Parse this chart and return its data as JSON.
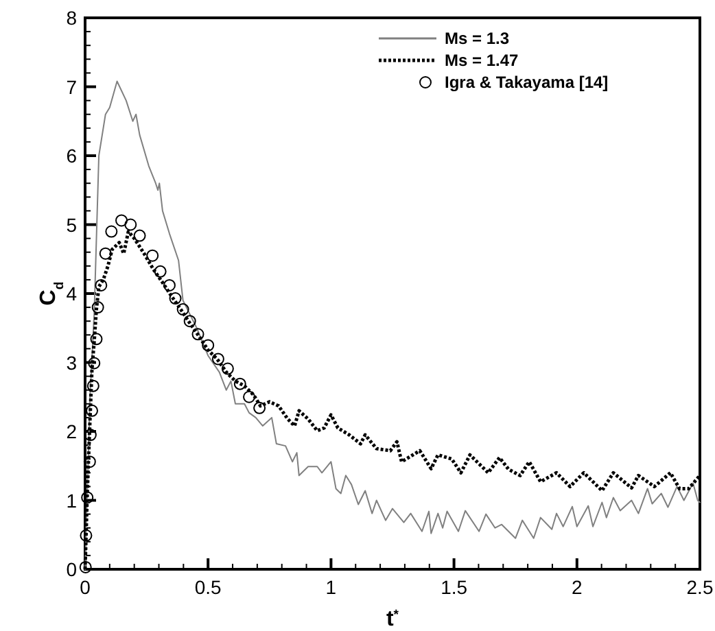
{
  "chart_data": {
    "type": "line",
    "xlabel": "t$^{*}$",
    "ylabel": "C$_{d}$",
    "xlim": [
      0,
      2.5
    ],
    "ylim": [
      0,
      8
    ],
    "xticks": [
      0,
      {
        "value": 0.1,
        "label": null
      },
      {
        "value": 0.2,
        "label": null
      },
      {
        "value": 0.3,
        "label": null
      },
      {
        "value": 0.4,
        "label": null
      },
      0.5,
      {
        "value": 0.6,
        "label": null
      },
      {
        "value": 0.7,
        "label": null
      },
      {
        "value": 0.8,
        "label": null
      },
      {
        "value": 0.9,
        "label": null
      },
      1,
      {
        "value": 1.1,
        "label": null
      },
      {
        "value": 1.2,
        "label": null
      },
      {
        "value": 1.3,
        "label": null
      },
      {
        "value": 1.4,
        "label": null
      },
      1.5,
      {
        "value": 1.6,
        "label": null
      },
      {
        "value": 1.7,
        "label": null
      },
      {
        "value": 1.8,
        "label": null
      },
      {
        "value": 1.9,
        "label": null
      },
      2,
      {
        "value": 2.1,
        "label": null
      },
      {
        "value": 2.2,
        "label": null
      },
      {
        "value": 2.3,
        "label": null
      },
      {
        "value": 2.4,
        "label": null
      },
      2.5
    ],
    "yticks": [
      0,
      {
        "value": 0.2,
        "label": null
      },
      {
        "value": 0.4,
        "label": null
      },
      {
        "value": 0.6,
        "label": null
      },
      {
        "value": 0.8,
        "label": null
      },
      1,
      {
        "value": 1.2,
        "label": null
      },
      {
        "value": 1.4,
        "label": null
      },
      {
        "value": 1.6,
        "label": null
      },
      {
        "value": 1.8,
        "label": null
      },
      2,
      {
        "value": 2.2,
        "label": null
      },
      {
        "value": 2.4,
        "label": null
      },
      {
        "value": 2.6,
        "label": null
      },
      {
        "value": 2.8,
        "label": null
      },
      3,
      {
        "value": 3.2,
        "label": null
      },
      {
        "value": 3.4,
        "label": null
      },
      {
        "value": 3.6,
        "label": null
      },
      {
        "value": 3.8,
        "label": null
      },
      4,
      {
        "value": 4.2,
        "label": null
      },
      {
        "value": 4.4,
        "label": null
      },
      {
        "value": 4.6,
        "label": null
      },
      {
        "value": 4.8,
        "label": null
      },
      5,
      {
        "value": 5.2,
        "label": null
      },
      {
        "value": 5.4,
        "label": null
      },
      {
        "value": 5.6,
        "label": null
      },
      {
        "value": 5.8,
        "label": null
      },
      6,
      {
        "value": 6.2,
        "label": null
      },
      {
        "value": 6.4,
        "label": null
      },
      {
        "value": 6.6,
        "label": null
      },
      {
        "value": 6.8,
        "label": null
      },
      7,
      {
        "value": 7.2,
        "label": null
      },
      {
        "value": 7.4,
        "label": null
      },
      {
        "value": 7.6,
        "label": null
      },
      {
        "value": 7.8,
        "label": null
      },
      8
    ],
    "grid": false,
    "legend": "top right",
    "series": [
      {
        "name": "Ms = 1.3",
        "color": "#808080",
        "line_style": "solid",
        "marker": "none",
        "x": [
          0,
          0.02,
          0.037,
          0.056,
          0.083,
          0.1,
          0.13,
          0.167,
          0.194,
          0.207,
          0.222,
          0.259,
          0.287,
          0.296,
          0.302,
          0.315,
          0.343,
          0.38,
          0.398,
          0.426,
          0.454,
          0.5,
          0.519,
          0.546,
          0.574,
          0.593,
          0.611,
          0.648,
          0.667,
          0.694,
          0.722,
          0.759,
          0.778,
          0.815,
          0.843,
          0.861,
          0.87,
          0.907,
          0.944,
          0.963,
          1.0,
          1.02,
          1.04,
          1.06,
          1.083,
          1.111,
          1.139,
          1.167,
          1.185,
          1.222,
          1.25,
          1.296,
          1.324,
          1.37,
          1.398,
          1.407,
          1.435,
          1.454,
          1.472,
          1.518,
          1.546,
          1.602,
          1.63,
          1.667,
          1.694,
          1.75,
          1.778,
          1.824,
          1.852,
          1.898,
          1.917,
          1.944,
          1.981,
          2.0,
          2.046,
          2.065,
          2.102,
          2.12,
          2.148,
          2.176,
          2.222,
          2.25,
          2.287,
          2.306,
          2.343,
          2.37,
          2.407,
          2.435,
          2.472,
          2.491,
          2.5
        ],
        "values": [
          0,
          2.5,
          3.7,
          6.0,
          6.6,
          6.7,
          7.08,
          6.8,
          6.5,
          6.6,
          6.3,
          5.85,
          5.6,
          5.5,
          5.6,
          5.2,
          4.87,
          4.48,
          3.9,
          3.7,
          3.5,
          3.1,
          3.0,
          2.86,
          2.6,
          2.73,
          2.4,
          2.4,
          2.27,
          2.2,
          2.08,
          2.2,
          1.82,
          1.79,
          1.56,
          1.69,
          1.36,
          1.49,
          1.49,
          1.4,
          1.56,
          1.17,
          1.1,
          1.36,
          1.23,
          0.94,
          1.14,
          0.81,
          1.0,
          0.71,
          0.88,
          0.68,
          0.81,
          0.55,
          0.84,
          0.52,
          0.81,
          0.6,
          0.84,
          0.55,
          0.85,
          0.55,
          0.8,
          0.6,
          0.65,
          0.45,
          0.71,
          0.45,
          0.75,
          0.58,
          0.81,
          0.62,
          0.91,
          0.62,
          0.92,
          0.62,
          0.97,
          0.75,
          1.04,
          0.85,
          1.0,
          0.81,
          1.17,
          0.95,
          1.1,
          0.9,
          1.2,
          1.0,
          1.25,
          1.0,
          0.97
        ]
      },
      {
        "name": "Ms = 1.47",
        "color": "#000000",
        "line_style": "dotted",
        "marker": "none",
        "x": [
          0,
          0.009,
          0.019,
          0.028,
          0.037,
          0.046,
          0.056,
          0.074,
          0.093,
          0.11,
          0.139,
          0.157,
          0.176,
          0.2,
          0.24,
          0.278,
          0.315,
          0.352,
          0.389,
          0.426,
          0.463,
          0.5,
          0.537,
          0.574,
          0.611,
          0.648,
          0.685,
          0.713,
          0.75,
          0.787,
          0.824,
          0.852,
          0.87,
          0.907,
          0.944,
          0.972,
          1.0,
          1.028,
          1.074,
          1.12,
          1.139,
          1.185,
          1.241,
          1.268,
          1.287,
          1.361,
          1.407,
          1.435,
          1.491,
          1.528,
          1.565,
          1.639,
          1.685,
          1.722,
          1.769,
          1.806,
          1.852,
          1.917,
          1.972,
          2.028,
          2.102,
          2.148,
          2.222,
          2.25,
          2.315,
          2.38,
          2.417,
          2.454,
          2.5
        ],
        "values": [
          0,
          1.1,
          2.08,
          2.9,
          3.3,
          3.77,
          4.1,
          4.2,
          4.4,
          4.64,
          4.74,
          4.58,
          4.9,
          4.8,
          4.58,
          4.35,
          4.16,
          3.96,
          3.77,
          3.57,
          3.38,
          3.18,
          3.05,
          2.86,
          2.73,
          2.66,
          2.53,
          2.37,
          2.43,
          2.37,
          2.18,
          2.08,
          2.3,
          2.18,
          2.01,
          2.05,
          2.24,
          2.05,
          1.95,
          1.82,
          1.95,
          1.75,
          1.72,
          1.85,
          1.56,
          1.72,
          1.46,
          1.66,
          1.6,
          1.4,
          1.66,
          1.4,
          1.62,
          1.45,
          1.36,
          1.56,
          1.27,
          1.4,
          1.2,
          1.4,
          1.14,
          1.4,
          1.18,
          1.36,
          1.2,
          1.4,
          1.17,
          1.17,
          1.36
        ]
      },
      {
        "name": "Igra & Takayama [14]",
        "color": "#000000",
        "type": "scatter",
        "marker": "circle",
        "x": [
          0.002,
          0.004,
          0.009,
          0.019,
          0.022,
          0.028,
          0.033,
          0.037,
          0.046,
          0.052,
          0.065,
          0.083,
          0.107,
          0.148,
          0.185,
          0.222,
          0.274,
          0.306,
          0.343,
          0.367,
          0.398,
          0.426,
          0.459,
          0.5,
          0.541,
          0.58,
          0.63,
          0.667,
          0.709
        ],
        "values": [
          0.03,
          0.49,
          1.04,
          1.56,
          1.95,
          2.3,
          2.66,
          2.99,
          3.34,
          3.8,
          4.12,
          4.58,
          4.9,
          5.06,
          5.0,
          4.84,
          4.55,
          4.32,
          4.12,
          3.93,
          3.77,
          3.6,
          3.41,
          3.25,
          3.05,
          2.91,
          2.69,
          2.5,
          2.34
        ]
      }
    ]
  }
}
